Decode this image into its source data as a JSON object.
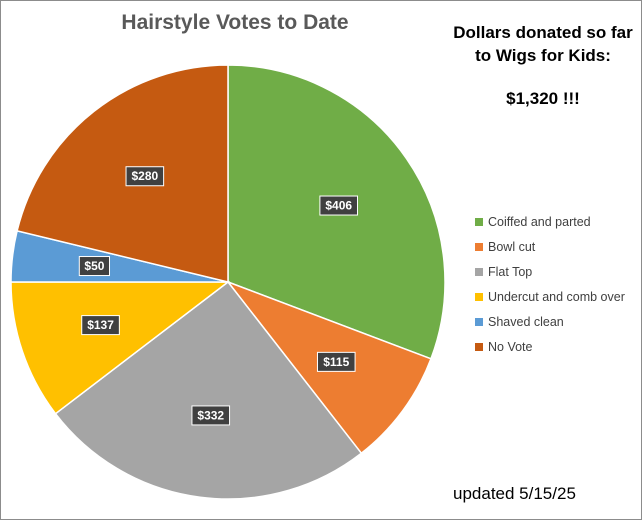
{
  "chart_data": {
    "type": "pie",
    "title": "Hairstyle Votes to Date",
    "categories": [
      "Coiffed and parted",
      "Bowl cut",
      "Flat Top",
      "Undercut and comb over",
      "Shaved clean",
      "No Vote"
    ],
    "values": [
      406,
      115,
      332,
      137,
      50,
      280
    ],
    "value_labels": [
      "$406",
      "$115",
      "$332",
      "$137",
      "$50",
      "$280"
    ],
    "colors": [
      "#70ad47",
      "#ed7d31",
      "#a5a5a5",
      "#ffc000",
      "#5b9bd5",
      "#c55a11"
    ],
    "legend_position": "right"
  },
  "donation": {
    "heading": "Dollars donated so far to Wigs for Kids:",
    "total": "$1,320 !!!"
  },
  "footer": {
    "updated": "updated 5/15/25"
  }
}
